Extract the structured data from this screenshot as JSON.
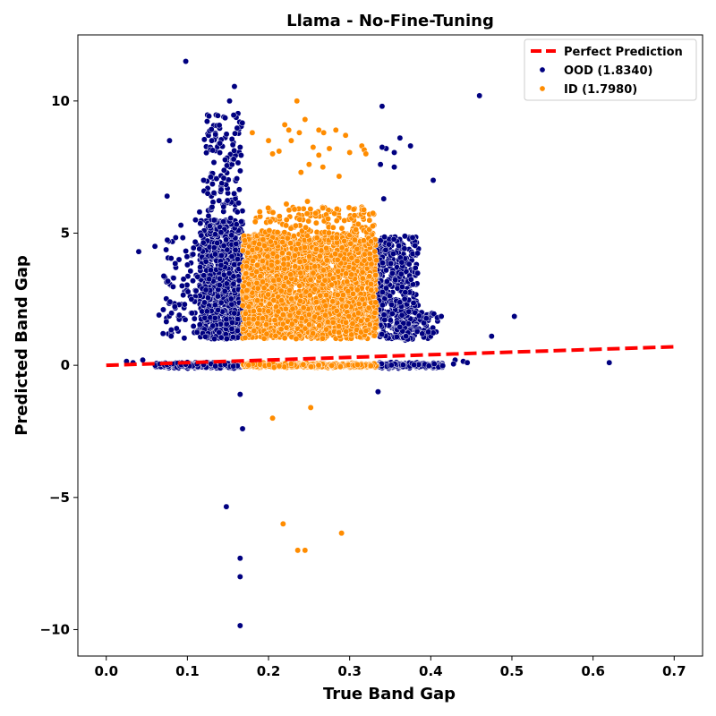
{
  "chart_data": {
    "type": "scatter",
    "title": "Llama - No-Fine-Tuning",
    "xlabel": "True Band Gap",
    "ylabel": "Predicted Band Gap",
    "xlim": [
      -0.035,
      0.735
    ],
    "ylim": [
      -11.0,
      12.5
    ],
    "xticks": [
      0.0,
      0.1,
      0.2,
      0.3,
      0.4,
      0.5,
      0.6,
      0.7
    ],
    "xtick_labels": [
      "0.0",
      "0.1",
      "0.2",
      "0.3",
      "0.4",
      "0.5",
      "0.6",
      "0.7"
    ],
    "yticks": [
      -10,
      -5,
      0,
      5,
      10
    ],
    "ytick_labels": [
      "−10",
      "−5",
      "0",
      "5",
      "10"
    ],
    "grid": false,
    "legend_position": "top-right",
    "reference_line": {
      "name": "Perfect Prediction",
      "x": [
        0.0,
        0.7
      ],
      "y": [
        0.0,
        0.7
      ],
      "color": "#ff0000",
      "style": "dashed"
    },
    "series": [
      {
        "name": "OOD (1.8340)",
        "color": "#000080",
        "outliers": [
          [
            0.098,
            11.5
          ],
          [
            0.158,
            10.55
          ],
          [
            0.152,
            10.0
          ],
          [
            0.078,
            8.5
          ],
          [
            0.075,
            6.4
          ],
          [
            0.04,
            4.3
          ],
          [
            0.06,
            4.5
          ],
          [
            0.085,
            3.85
          ],
          [
            0.09,
            1.9
          ],
          [
            0.105,
            2.5
          ],
          [
            0.092,
            5.3
          ],
          [
            0.11,
            5.5
          ],
          [
            0.12,
            7.0
          ],
          [
            0.34,
            9.8
          ],
          [
            0.345,
            8.2
          ],
          [
            0.355,
            7.5
          ],
          [
            0.362,
            8.6
          ],
          [
            0.375,
            8.3
          ],
          [
            0.342,
            6.3
          ],
          [
            0.403,
            7.0
          ],
          [
            0.46,
            10.2
          ],
          [
            0.503,
            1.85
          ],
          [
            0.475,
            1.1
          ],
          [
            0.62,
            0.1
          ],
          [
            0.408,
            1.8
          ],
          [
            0.413,
            1.85
          ],
          [
            0.165,
            -1.1
          ],
          [
            0.168,
            -2.4
          ],
          [
            0.148,
            -5.35
          ],
          [
            0.165,
            -7.3
          ],
          [
            0.165,
            -8.0
          ],
          [
            0.165,
            -9.85
          ],
          [
            0.335,
            -1.0
          ],
          [
            0.045,
            0.2
          ],
          [
            0.025,
            0.15
          ],
          [
            0.033,
            0.1
          ],
          [
            0.43,
            0.2
          ],
          [
            0.44,
            0.15
          ],
          [
            0.445,
            0.1
          ],
          [
            0.428,
            0.05
          ],
          [
            0.065,
            1.9
          ],
          [
            0.07,
            1.2
          ],
          [
            0.08,
            1.1
          ],
          [
            0.083,
            3.3
          ],
          [
            0.1,
            3.8
          ],
          [
            0.107,
            4.2
          ],
          [
            0.115,
            5.8
          ],
          [
            0.13,
            8.5
          ],
          [
            0.14,
            8.4
          ],
          [
            0.125,
            6.5
          ],
          [
            0.355,
            8.05
          ],
          [
            0.34,
            8.25
          ],
          [
            0.338,
            7.6
          ]
        ]
      },
      {
        "name": "ID (1.7980)",
        "color": "#ff8c00",
        "outliers": [
          [
            0.235,
            10.0
          ],
          [
            0.22,
            9.1
          ],
          [
            0.245,
            9.3
          ],
          [
            0.205,
            8.0
          ],
          [
            0.213,
            8.1
          ],
          [
            0.228,
            8.5
          ],
          [
            0.262,
            8.9
          ],
          [
            0.283,
            8.9
          ],
          [
            0.295,
            8.7
          ],
          [
            0.315,
            8.3
          ],
          [
            0.318,
            8.15
          ],
          [
            0.32,
            8.0
          ],
          [
            0.275,
            8.2
          ],
          [
            0.267,
            7.5
          ],
          [
            0.24,
            7.3
          ],
          [
            0.25,
            7.6
          ],
          [
            0.287,
            7.15
          ],
          [
            0.305,
            5.9
          ],
          [
            0.205,
            -2.0
          ],
          [
            0.252,
            -1.6
          ],
          [
            0.218,
            -6.0
          ],
          [
            0.236,
            -7.0
          ],
          [
            0.245,
            -7.0
          ],
          [
            0.29,
            -6.35
          ],
          [
            0.2,
            8.5
          ],
          [
            0.225,
            8.9
          ],
          [
            0.255,
            8.25
          ],
          [
            0.3,
            8.05
          ],
          [
            0.248,
            6.2
          ],
          [
            0.232,
            5.9
          ],
          [
            0.222,
            6.1
          ],
          [
            0.18,
            8.8
          ],
          [
            0.268,
            8.8
          ],
          [
            0.238,
            8.8
          ],
          [
            0.262,
            7.95
          ]
        ]
      }
    ]
  }
}
